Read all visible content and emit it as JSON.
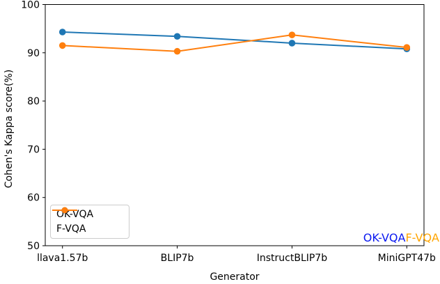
{
  "figure": {
    "background": "#ffffff",
    "axis_color": "#000000"
  },
  "chart_data": {
    "type": "line",
    "title": "",
    "xlabel": "Generator",
    "ylabel": "Cohen's Kappa score(%)",
    "categories": [
      "llava1.57b",
      "BLIP7b",
      "InstructBLIP7b",
      "MiniGPT47b"
    ],
    "series": [
      {
        "name": "OK-VQA",
        "color": "#1f77b4",
        "marker": "circle",
        "values": [
          94.3,
          93.4,
          92.0,
          90.8
        ]
      },
      {
        "name": "F-VQA",
        "color": "#ff7f0e",
        "marker": "circle",
        "values": [
          91.5,
          90.3,
          93.7,
          91.1
        ]
      }
    ],
    "ylim": [
      50,
      100
    ],
    "yticks": [
      50,
      60,
      70,
      80,
      90,
      100
    ],
    "grid": false,
    "legend_position": "lower-left"
  },
  "annotations": [
    {
      "text": "OK-VQA",
      "color": "#0a18f0"
    },
    {
      "text": "F-VQA",
      "color": "#ffa500"
    }
  ]
}
